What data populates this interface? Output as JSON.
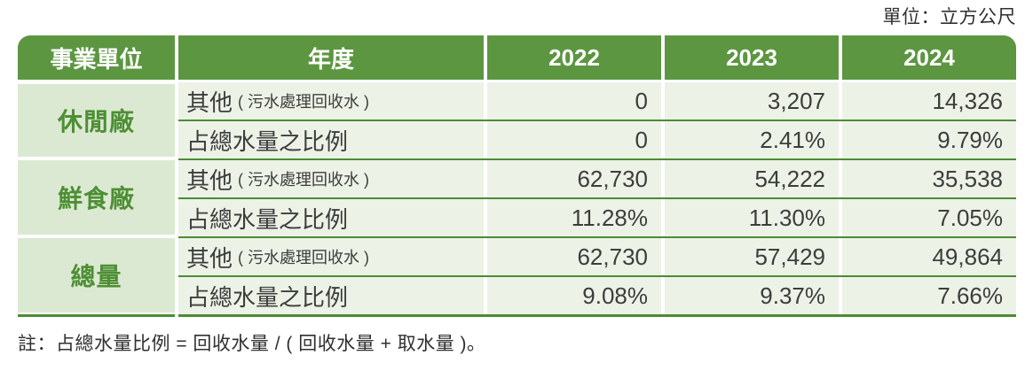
{
  "unit_label": "單位：立方公尺",
  "note": "註：占總水量比例 = 回收水量 / ( 回收水量 + 取水量 )。",
  "colors": {
    "header_green": "#5C9641",
    "group_label_bg": "#DCE9D2",
    "row_bg": "#EDF2E7",
    "line_green": "#4A8C33",
    "group_text_green": "#4E8F35",
    "text_dark": "#3C3D3C"
  },
  "table": {
    "header": {
      "unit_col": "事業單位",
      "year_col": "年度",
      "years": [
        "2022",
        "2023",
        "2024"
      ]
    },
    "groups": [
      {
        "name": "休閒廠",
        "rows": [
          {
            "metric_main": "其他",
            "metric_sub": "( 污水處理回收水 )",
            "values": [
              "0",
              "3,207",
              "14,326"
            ]
          },
          {
            "metric_main": "占總水量之比例",
            "metric_sub": "",
            "values": [
              "0",
              "2.41%",
              "9.79%"
            ]
          }
        ]
      },
      {
        "name": "鮮食廠",
        "rows": [
          {
            "metric_main": "其他",
            "metric_sub": "( 污水處理回收水 )",
            "values": [
              "62,730",
              "54,222",
              "35,538"
            ]
          },
          {
            "metric_main": "占總水量之比例",
            "metric_sub": "",
            "values": [
              "11.28%",
              "11.30%",
              "7.05%"
            ]
          }
        ]
      },
      {
        "name": "總量",
        "rows": [
          {
            "metric_main": "其他",
            "metric_sub": "( 污水處理回收水 )",
            "values": [
              "62,730",
              "57,429",
              "49,864"
            ]
          },
          {
            "metric_main": "占總水量之比例",
            "metric_sub": "",
            "values": [
              "9.08%",
              "9.37%",
              "7.66%"
            ]
          }
        ]
      }
    ]
  },
  "chart_data": {
    "type": "table",
    "title": "",
    "unit": "立方公尺",
    "columns": [
      "事業單位",
      "年度",
      "2022",
      "2023",
      "2024"
    ],
    "rows": [
      [
        "休閒廠",
        "其他 ( 污水處理回收水 )",
        "0",
        "3,207",
        "14,326"
      ],
      [
        "休閒廠",
        "占總水量之比例",
        "0",
        "2.41%",
        "9.79%"
      ],
      [
        "鮮食廠",
        "其他 ( 污水處理回收水 )",
        "62,730",
        "54,222",
        "35,538"
      ],
      [
        "鮮食廠",
        "占總水量之比例",
        "11.28%",
        "11.30%",
        "7.05%"
      ],
      [
        "總量",
        "其他 ( 污水處理回收水 )",
        "62,730",
        "57,429",
        "49,864"
      ],
      [
        "總量",
        "占總水量之比例",
        "9.08%",
        "9.37%",
        "7.66%"
      ]
    ],
    "note": "註：占總水量比例 = 回收水量 / ( 回收水量 + 取水量 )。"
  }
}
